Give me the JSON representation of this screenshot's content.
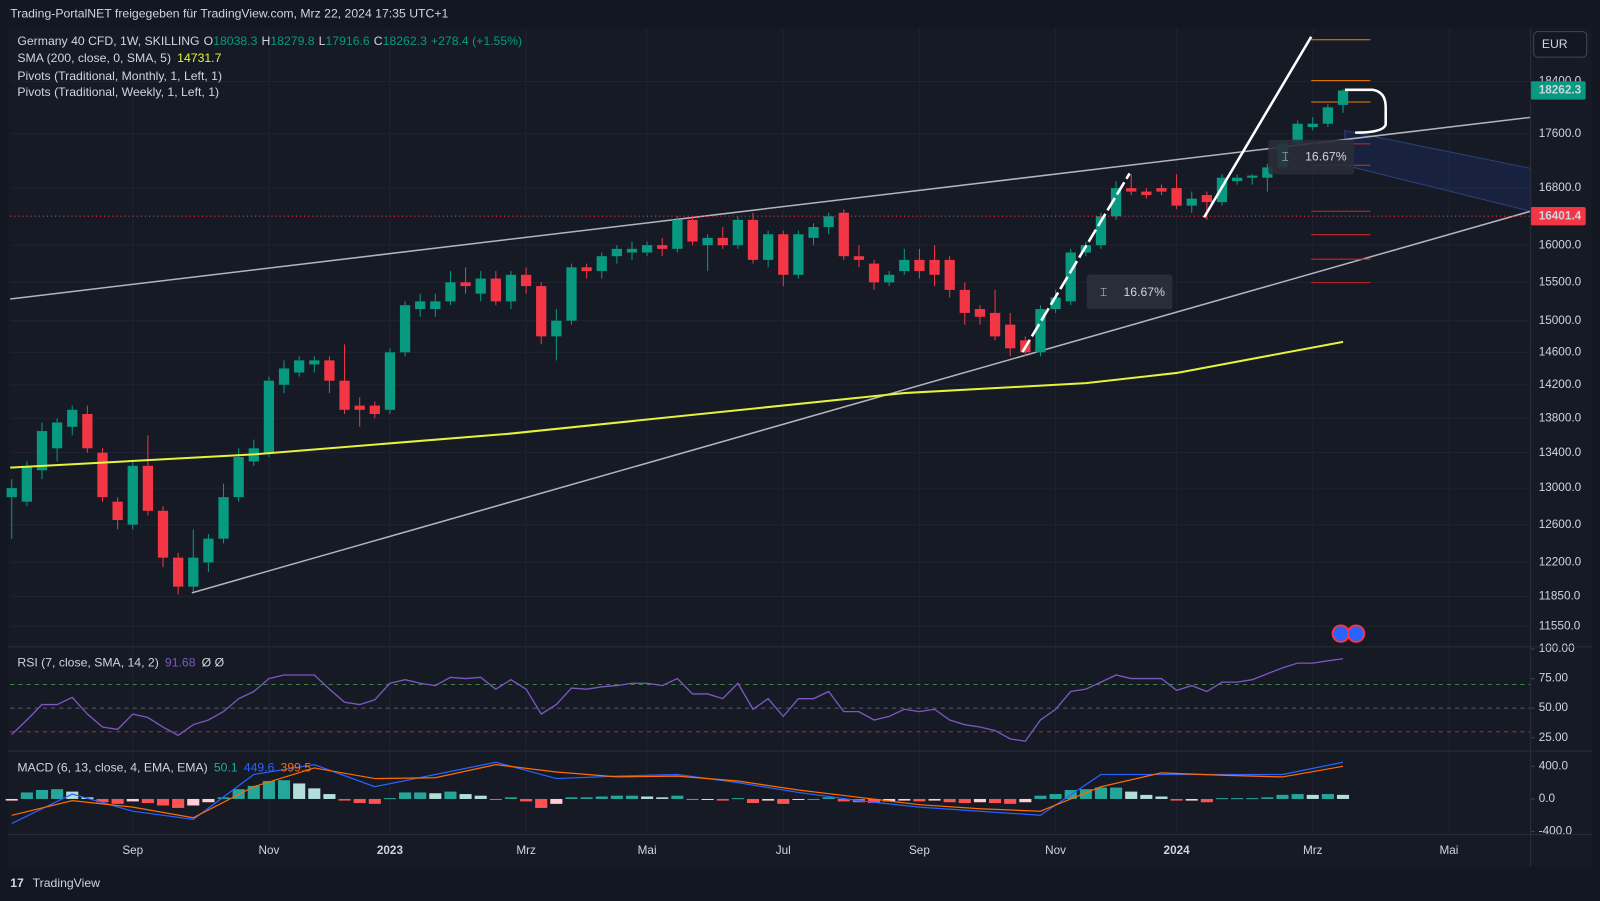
{
  "header": {
    "share": "Trading-PortalNET freigegeben für TradingView.com, Mrz 22, 2024 17:35 UTC+1",
    "brand": "TradingView"
  },
  "chart_data": [
    {
      "type": "candlestick",
      "title": "Germany 40 CFD, 1W, SKILLING",
      "legend_letters": [
        "O",
        "H",
        "L",
        "C"
      ],
      "change": "+278.4 (+1.55%)",
      "up_color": "#089981",
      "down_color": "#f23645",
      "log": true,
      "grid": true,
      "currency": "EUR",
      "ohlc": [
        [
          12900,
          13100,
          12450,
          13000
        ],
        [
          12850,
          13300,
          12800,
          13250
        ],
        [
          13200,
          13750,
          13100,
          13650
        ],
        [
          13450,
          13800,
          13300,
          13750
        ],
        [
          13700,
          13950,
          13600,
          13900
        ],
        [
          13850,
          13950,
          13400,
          13450
        ],
        [
          13400,
          13450,
          12850,
          12900
        ],
        [
          12850,
          12900,
          12550,
          12650
        ],
        [
          12600,
          13300,
          12550,
          13250
        ],
        [
          13250,
          13600,
          12700,
          12750
        ],
        [
          12750,
          12800,
          12150,
          12250
        ],
        [
          12250,
          12300,
          11870,
          11950
        ],
        [
          11950,
          12550,
          11900,
          12250
        ],
        [
          12200,
          12500,
          12100,
          12450
        ],
        [
          12450,
          13050,
          12400,
          12900
        ],
        [
          12900,
          13450,
          12850,
          13350
        ],
        [
          13300,
          13550,
          13250,
          13450
        ],
        [
          13400,
          14300,
          13350,
          14250
        ],
        [
          14200,
          14500,
          14100,
          14400
        ],
        [
          14350,
          14550,
          14300,
          14500
        ],
        [
          14450,
          14550,
          14350,
          14500
        ],
        [
          14500,
          14550,
          14100,
          14250
        ],
        [
          14250,
          14700,
          13850,
          13900
        ],
        [
          13950,
          14050,
          13700,
          13900
        ],
        [
          13950,
          14000,
          13800,
          13850
        ],
        [
          13900,
          14650,
          13850,
          14600
        ],
        [
          14600,
          15250,
          14550,
          15200
        ],
        [
          15150,
          15350,
          15050,
          15250
        ],
        [
          15150,
          15350,
          15050,
          15250
        ],
        [
          15250,
          15650,
          15200,
          15500
        ],
        [
          15500,
          15700,
          15350,
          15450
        ],
        [
          15350,
          15650,
          15250,
          15550
        ],
        [
          15550,
          15650,
          15200,
          15250
        ],
        [
          15250,
          15650,
          15150,
          15600
        ],
        [
          15600,
          15700,
          15350,
          15450
        ],
        [
          15450,
          15500,
          14700,
          14800
        ],
        [
          14800,
          15150,
          14500,
          15000
        ],
        [
          15000,
          15750,
          14950,
          15700
        ],
        [
          15700,
          15750,
          15550,
          15650
        ],
        [
          15650,
          15900,
          15550,
          15850
        ],
        [
          15850,
          16000,
          15750,
          15950
        ],
        [
          15900,
          16050,
          15800,
          15950
        ],
        [
          15900,
          16050,
          15850,
          16000
        ],
        [
          16000,
          16100,
          15850,
          15950
        ],
        [
          15950,
          16400,
          15900,
          16350
        ],
        [
          16350,
          16400,
          16000,
          16050
        ],
        [
          16000,
          16150,
          15650,
          16100
        ],
        [
          16100,
          16250,
          15950,
          16000
        ],
        [
          16000,
          16400,
          15950,
          16350
        ],
        [
          16350,
          16450,
          15750,
          15800
        ],
        [
          15800,
          16200,
          15700,
          16150
        ],
        [
          16150,
          16200,
          15450,
          15600
        ],
        [
          15600,
          16200,
          15550,
          16150
        ],
        [
          16100,
          16300,
          16000,
          16250
        ],
        [
          16250,
          16450,
          16150,
          16400
        ],
        [
          16450,
          16500,
          15800,
          15850
        ],
        [
          15850,
          16000,
          15700,
          15800
        ],
        [
          15750,
          15800,
          15400,
          15500
        ],
        [
          15500,
          15650,
          15450,
          15600
        ],
        [
          15650,
          15950,
          15600,
          15800
        ],
        [
          15800,
          15950,
          15550,
          15650
        ],
        [
          15800,
          16000,
          15450,
          15600
        ],
        [
          15800,
          15850,
          15300,
          15400
        ],
        [
          15400,
          15500,
          14950,
          15100
        ],
        [
          15150,
          15200,
          14950,
          15050
        ],
        [
          15100,
          15400,
          14750,
          14800
        ],
        [
          14950,
          15100,
          14550,
          14650
        ],
        [
          14750,
          14800,
          14550,
          14600
        ],
        [
          14600,
          15200,
          14550,
          15150
        ],
        [
          15150,
          15400,
          15100,
          15300
        ],
        [
          15250,
          15950,
          15200,
          15900
        ],
        [
          15900,
          16050,
          15850,
          16000
        ],
        [
          16000,
          16450,
          15950,
          16400
        ],
        [
          16400,
          16900,
          16350,
          16800
        ],
        [
          16800,
          17000,
          16700,
          16750
        ],
        [
          16750,
          16800,
          16650,
          16700
        ],
        [
          16800,
          16850,
          16700,
          16750
        ],
        [
          16800,
          17000,
          16500,
          16550
        ],
        [
          16550,
          16750,
          16450,
          16650
        ],
        [
          16700,
          16750,
          16350,
          16600
        ],
        [
          16600,
          17000,
          16550,
          16950
        ],
        [
          16900,
          17000,
          16850,
          16950
        ],
        [
          16950,
          17000,
          16850,
          16980
        ],
        [
          16950,
          17150,
          16750,
          17100
        ],
        [
          17100,
          17500,
          17050,
          17450
        ],
        [
          17450,
          17800,
          17400,
          17750
        ],
        [
          17700,
          17850,
          17650,
          17750
        ],
        [
          17750,
          18050,
          17700,
          18000
        ],
        [
          18038.3,
          18279.8,
          17916.6,
          18262.3
        ]
      ],
      "xlim": [
        -0.1,
        100.4
      ],
      "xticks": [
        {
          "value": 8,
          "label": "Sep"
        },
        {
          "value": 17,
          "label": "Nov"
        },
        {
          "value": 25,
          "label": "2023"
        },
        {
          "value": 34,
          "label": "Mrz"
        },
        {
          "value": 42,
          "label": "Mai"
        },
        {
          "value": 51,
          "label": "Jul"
        },
        {
          "value": 60,
          "label": "Sep"
        },
        {
          "value": 69,
          "label": "Nov"
        },
        {
          "value": 77,
          "label": "2024"
        },
        {
          "value": 86,
          "label": "Mrz"
        },
        {
          "value": 95,
          "label": "Mai"
        }
      ],
      "ylim": [
        11350,
        19254
      ],
      "yticks": [
        {
          "value": 18400,
          "label": "18400.0"
        },
        {
          "value": 17600,
          "label": "17600.0"
        },
        {
          "value": 16800,
          "label": "16800.0"
        },
        {
          "value": 16000,
          "label": "16000.0"
        },
        {
          "value": 15500,
          "label": "15500.0"
        },
        {
          "value": 15000,
          "label": "15000.0"
        },
        {
          "value": 14600,
          "label": "14600.0"
        },
        {
          "value": 14200,
          "label": "14200.0"
        },
        {
          "value": 13800,
          "label": "13800.0"
        },
        {
          "value": 13400,
          "label": "13400.0"
        },
        {
          "value": 13000,
          "label": "13000.0"
        },
        {
          "value": 12600,
          "label": "12600.0"
        },
        {
          "value": 12200,
          "label": "12200.0"
        },
        {
          "value": 11850,
          "label": "11850.0"
        },
        {
          "value": 11550,
          "label": "11550.0"
        }
      ],
      "sma": {
        "name": "SMA (200, close, 0, SMA, 5)",
        "color": "#e5f33d",
        "x": [
          -0.1,
          16,
          33,
          59,
          71,
          77,
          88
        ],
        "values": [
          13230,
          13380,
          13620,
          14100,
          14220,
          14345,
          14731.7
        ]
      },
      "pivots": [
        "Pivots (Traditional, Monthly, 1, Left, 1)",
        "Pivots (Traditional, Weekly, 1, Left, 1)"
      ],
      "price_line": {
        "value": 16401.4,
        "color": "#f23645"
      },
      "measures": [
        "16.67%",
        "16.67%"
      ]
    },
    {
      "type": "line",
      "title": "RSI (7, close, SMA, 14, 2)",
      "extra": "Ø Ø",
      "color": "#7e57c2",
      "values": [
        27.6,
        40,
        53,
        53,
        59,
        45,
        34,
        32,
        45,
        42,
        34,
        27,
        36,
        40,
        47,
        58,
        64,
        75,
        78,
        78,
        78,
        66,
        55,
        53,
        57,
        71,
        74,
        71,
        69,
        76,
        75,
        76,
        66,
        74,
        66,
        45,
        53,
        67,
        66,
        68,
        69,
        71,
        71,
        69,
        75,
        62,
        62,
        58,
        71,
        49,
        58,
        43,
        58,
        58,
        64,
        47,
        47,
        40,
        43,
        49,
        47,
        49,
        40,
        36,
        34,
        31,
        24,
        22,
        40,
        49,
        64,
        66,
        72,
        78,
        75,
        75,
        75,
        65,
        69,
        64,
        72,
        72,
        74,
        79,
        84,
        88,
        88,
        90,
        91.68
      ],
      "levels": [
        70,
        50,
        30
      ],
      "ylim": [
        14.6,
        100
      ],
      "yticks": [
        {
          "value": 100,
          "label": "100.00"
        },
        {
          "value": 75,
          "label": "75.00"
        },
        {
          "value": 50,
          "label": "50.00"
        },
        {
          "value": 25,
          "label": "25.00"
        }
      ]
    },
    {
      "type": "macd",
      "title": "MACD (6, 13, close, 4, EMA, EMA)",
      "histogram": {
        "colors": [
          "#26a69a",
          "#b2dfdb",
          "#ff5252",
          "#ffcdd2"
        ],
        "values": [
          -20,
          80,
          110,
          120,
          90,
          20,
          -40,
          -60,
          -30,
          -50,
          -80,
          -110,
          -80,
          -40,
          20,
          120,
          160,
          220,
          230,
          190,
          130,
          60,
          -20,
          -50,
          -60,
          10,
          80,
          80,
          70,
          90,
          60,
          40,
          -10,
          20,
          -30,
          -110,
          -60,
          20,
          20,
          30,
          40,
          40,
          30,
          20,
          40,
          -10,
          -10,
          -20,
          10,
          -50,
          -20,
          -60,
          -10,
          0,
          20,
          -30,
          -40,
          -50,
          -30,
          -20,
          -30,
          -20,
          -40,
          -50,
          -40,
          -50,
          -60,
          -40,
          40,
          60,
          110,
          120,
          140,
          140,
          90,
          50,
          30,
          -20,
          -20,
          -40,
          10,
          10,
          10,
          20,
          50,
          60,
          50,
          60,
          50.1
        ]
      },
      "macd": {
        "color": "#2962ff",
        "x": [
          0,
          4,
          8,
          12,
          16,
          20,
          24,
          28,
          32,
          36,
          40,
          44,
          48,
          52,
          56,
          60,
          64,
          68,
          72,
          76,
          80,
          84,
          88
        ],
        "values": [
          -300,
          60,
          -150,
          -250,
          300,
          420,
          150,
          300,
          450,
          250,
          280,
          300,
          200,
          80,
          -20,
          -100,
          -150,
          -200,
          300,
          300,
          300,
          300,
          449.6
        ]
      },
      "signal": {
        "color": "#ff6d00",
        "x": [
          0,
          4,
          8,
          12,
          16,
          20,
          24,
          28,
          32,
          36,
          40,
          44,
          48,
          52,
          56,
          60,
          64,
          68,
          72,
          76,
          80,
          84,
          88
        ],
        "values": [
          -200,
          -20,
          -100,
          -230,
          150,
          380,
          250,
          260,
          420,
          330,
          270,
          280,
          220,
          110,
          20,
          -70,
          -120,
          -150,
          150,
          320,
          290,
          270,
          399.5
        ]
      },
      "ylim": [
        -437.5,
        575
      ],
      "yticks": [
        {
          "value": 400,
          "label": "400.0"
        },
        {
          "value": 0,
          "label": "0.0"
        },
        {
          "value": -400,
          "label": "-400.0"
        }
      ]
    }
  ]
}
